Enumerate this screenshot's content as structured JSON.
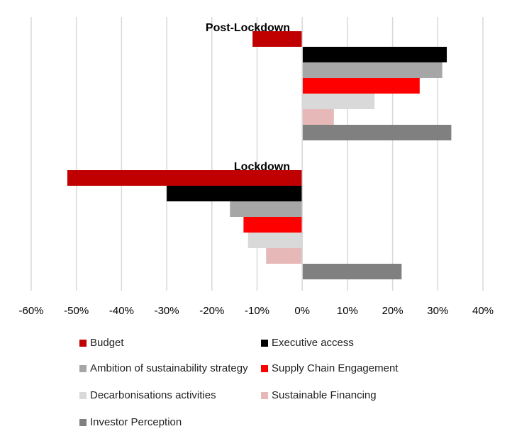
{
  "chart_data": {
    "type": "bar",
    "orientation": "horizontal",
    "groups": [
      {
        "label": "Post-Lockdown",
        "values": {
          "Budget": -11,
          "Executive access": 32,
          "Ambition of sustainability strategy": 31,
          "Supply Chain Engagement": 26,
          "Decarbonisations activities": 16,
          "Sustainable Financing": 7,
          "Investor Perception": 33
        }
      },
      {
        "label": "Lockdown",
        "values": {
          "Budget": -52,
          "Executive access": -30,
          "Ambition of sustainability strategy": -16,
          "Supply Chain Engagement": -13,
          "Decarbonisations activities": -12,
          "Sustainable Financing": -8,
          "Investor Perception": 22
        }
      }
    ],
    "series": [
      {
        "name": "Budget",
        "color": "#C00000"
      },
      {
        "name": "Executive access",
        "color": "#000000"
      },
      {
        "name": "Ambition of sustainability strategy",
        "color": "#A6A6A6"
      },
      {
        "name": "Supply Chain Engagement",
        "color": "#FF0000"
      },
      {
        "name": "Decarbonisations activities",
        "color": "#D9D9D9"
      },
      {
        "name": "Sustainable Financing",
        "color": "#E6B8B7"
      },
      {
        "name": "Investor Perception",
        "color": "#808080"
      }
    ],
    "xlim": [
      -60,
      40
    ],
    "xticks": [
      "-60%",
      "-50%",
      "-40%",
      "-30%",
      "-20%",
      "-10%",
      "0%",
      "10%",
      "20%",
      "30%",
      "40%"
    ],
    "grid": true,
    "legend_position": "bottom"
  }
}
